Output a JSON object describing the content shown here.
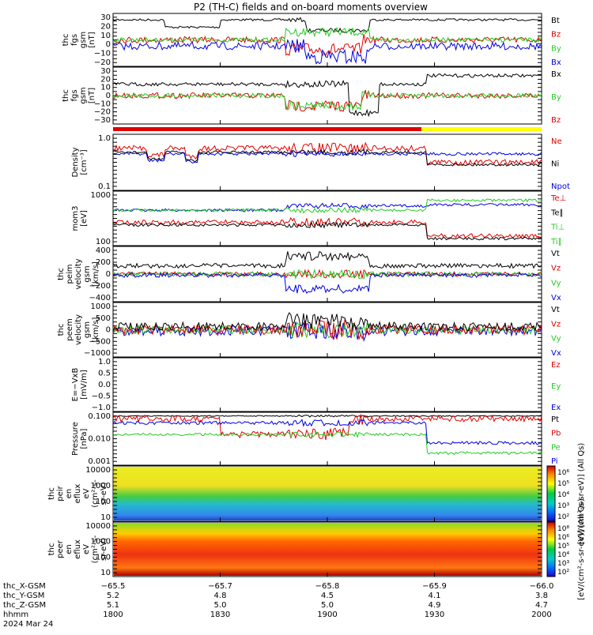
{
  "title": "P2 (TH-C) fields and on-board moments overview",
  "colors": {
    "black": "#000000",
    "red": "#e00000",
    "green": "#22cc22",
    "blue": "#0000e0",
    "yellow": "#ffff00"
  },
  "chart_data": [
    {
      "id": "p1",
      "type": "line",
      "ylabel": [
        "thc",
        "fgs",
        "gsm",
        "[nT]"
      ],
      "yticks": [
        "30",
        "20",
        "10",
        "0",
        "−10",
        "−20"
      ],
      "legend": [
        {
          "text": "Bt",
          "color": "black"
        },
        {
          "text": "Bz",
          "color": "red"
        },
        {
          "text": "By",
          "color": "green"
        },
        {
          "text": "Bx",
          "color": "blue"
        }
      ]
    },
    {
      "id": "p2",
      "type": "line",
      "ylabel": [
        "thc",
        "fgs",
        "gsm",
        "[nT]"
      ],
      "yticks": [
        "30",
        "20",
        "10",
        "0",
        "−10",
        "−20",
        "−30"
      ],
      "legend": [
        {
          "text": "Bx",
          "color": "black"
        },
        {
          "text": "By",
          "color": "green"
        },
        {
          "text": "Bz",
          "color": "red"
        }
      ]
    },
    {
      "id": "p3",
      "type": "line",
      "ylabel": [
        "Density",
        "[cm⁻³]"
      ],
      "yscale": "log",
      "yticks": [
        "1.0",
        "0.1"
      ],
      "legend": [
        {
          "text": "Ne",
          "color": "red"
        },
        {
          "text": "Ni",
          "color": "black"
        },
        {
          "text": "Npot",
          "color": "blue"
        }
      ]
    },
    {
      "id": "p4",
      "type": "line",
      "ylabel": [
        "mom3",
        "[eV]"
      ],
      "yscale": "log",
      "yticks": [
        "1000",
        "100"
      ],
      "legend": [
        {
          "text": "Te⊥",
          "color": "red"
        },
        {
          "text": "Te∥",
          "color": "black"
        },
        {
          "text": "Ti⊥",
          "color": "green"
        },
        {
          "text": "Ti∥",
          "color": "green"
        }
      ]
    },
    {
      "id": "p5",
      "type": "line",
      "ylabel": [
        "thc",
        "peim",
        "velocity",
        "gsm",
        "[km/s]"
      ],
      "yticks": [
        "400",
        "200",
        "0",
        "−200",
        "−400"
      ],
      "legend": [
        {
          "text": "Vt",
          "color": "black"
        },
        {
          "text": "Vz",
          "color": "red"
        },
        {
          "text": "Vy",
          "color": "green"
        },
        {
          "text": "Vx",
          "color": "blue"
        }
      ]
    },
    {
      "id": "p6",
      "type": "line",
      "ylabel": [
        "thc",
        "peem",
        "velocity",
        "gsm",
        "[km/s]"
      ],
      "yticks": [
        "1000",
        "500",
        "0",
        "−500",
        "−1000"
      ],
      "legend": [
        {
          "text": "Vt",
          "color": "black"
        },
        {
          "text": "Vz",
          "color": "red"
        },
        {
          "text": "Vy",
          "color": "green"
        },
        {
          "text": "Vx",
          "color": "blue"
        }
      ]
    },
    {
      "id": "p7",
      "type": "line",
      "ylabel": [
        "E=−VxB",
        "[mV/m]"
      ],
      "yticks": [
        "1.0",
        "0.5",
        "0.0",
        "−0.5",
        "−1.0"
      ],
      "legend": [
        {
          "text": "Ez",
          "color": "red"
        },
        {
          "text": "Ey",
          "color": "green"
        },
        {
          "text": "Ex",
          "color": "blue"
        }
      ]
    },
    {
      "id": "p8",
      "type": "line",
      "ylabel": [
        "Pressure",
        "[nPa]"
      ],
      "yscale": "log",
      "yticks": [
        "0.100",
        "0.010",
        "0.001"
      ],
      "legend": [
        {
          "text": "Pt",
          "color": "black"
        },
        {
          "text": "Pb",
          "color": "red"
        },
        {
          "text": "Pe",
          "color": "green"
        },
        {
          "text": "Pi",
          "color": "blue"
        }
      ]
    },
    {
      "id": "p9",
      "type": "heatmap",
      "ylabel": [
        "thc",
        "peir",
        "en",
        "eflux",
        "eV",
        "(cm²-s-",
        "sr-eV)"
      ],
      "yscale": "log",
      "yticks": [
        "10000",
        "1000",
        "100",
        "10"
      ],
      "colorbar": {
        "label": "[eV/(cm²-s-sr-eV)] (All Qs)",
        "ticks": [
          "10⁶",
          "10⁵",
          "10⁴",
          "10³",
          "10²"
        ]
      }
    },
    {
      "id": "p10",
      "type": "heatmap",
      "ylabel": [
        "thc",
        "peer",
        "en",
        "eflux",
        "eV",
        "(cm²-s-",
        "sr-eV)"
      ],
      "yscale": "log",
      "yticks": [
        "10000",
        "1000",
        "100",
        "10"
      ],
      "colorbar": {
        "label": "[eV/(cm²-s-sr-eV)] (All Qs)",
        "ticks": [
          "10⁸",
          "10⁶",
          "10⁵",
          "10⁴",
          "10³",
          "10²"
        ]
      }
    }
  ],
  "xaxis": {
    "rows": [
      {
        "label": "thc_X-GSM",
        "values": [
          "−65.5",
          "−65.7",
          "−65.8",
          "−65.9",
          "−66.0"
        ]
      },
      {
        "label": "thc_Y-GSM",
        "values": [
          "5.2",
          "4.8",
          "4.5",
          "4.1",
          "3.8"
        ]
      },
      {
        "label": "thc_Z-GSM",
        "values": [
          "5.1",
          "5.0",
          "5.0",
          "4.9",
          "4.7"
        ]
      },
      {
        "label": "hhmm",
        "values": [
          "1800",
          "1830",
          "1900",
          "1930",
          "2000"
        ]
      }
    ],
    "date": "2024 Mar 24"
  }
}
